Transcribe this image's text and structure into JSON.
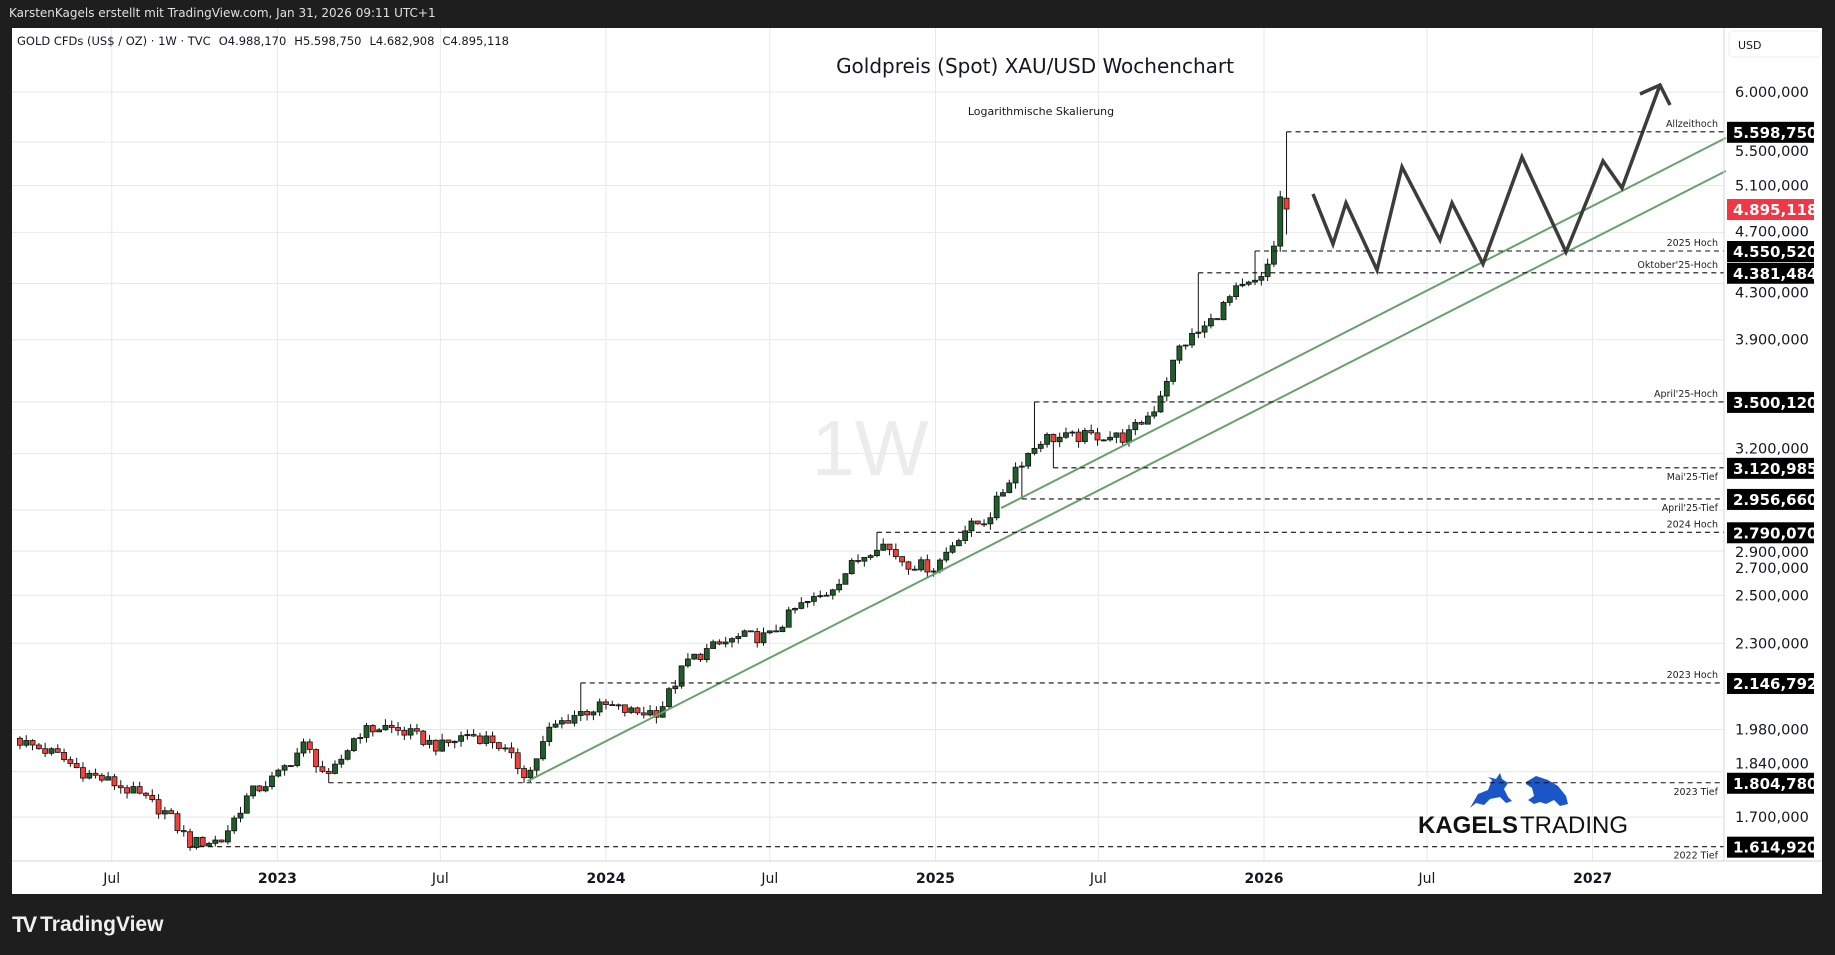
{
  "credits": "KarstenKagels erstellt mit TradingView.com, Jan 31, 2026 09:11 UTC+1",
  "branding": {
    "tradingview": "TradingView",
    "kagels_bold": "KAGELS",
    "kagels_light": "TRADING"
  },
  "legend": {
    "symbol": "GOLD CFDs (US$ / OZ) · 1W · TVC",
    "open": "O4.988,170",
    "high": "H5.598,750",
    "low": "L4.682,908",
    "close": "C4.895,118"
  },
  "chart_data": {
    "type": "candlestick",
    "title": "Goldpreis (Spot) XAU/USD Wochenchart",
    "subtitle": "Logarithmische Skalierung",
    "interval_watermark": "1W",
    "currency": "USD",
    "y_scale": "log",
    "ylim": [
      1560,
      6400
    ],
    "colors": {
      "up": "#1f5e2b",
      "down": "#f2403a",
      "trend": "#6a9f6e",
      "projection": "#3c3c3c",
      "current": "#f23645",
      "brand": "#1a56c8"
    },
    "x_ticks": [
      {
        "date": "2022-07-01",
        "label": "Jul",
        "bold": false
      },
      {
        "date": "2023-01-01",
        "label": "2023",
        "bold": true
      },
      {
        "date": "2023-07-01",
        "label": "Jul",
        "bold": false
      },
      {
        "date": "2024-01-01",
        "label": "2024",
        "bold": true
      },
      {
        "date": "2024-07-01",
        "label": "Jul",
        "bold": false
      },
      {
        "date": "2025-01-01",
        "label": "2025",
        "bold": true
      },
      {
        "date": "2025-07-01",
        "label": "Jul",
        "bold": false
      },
      {
        "date": "2026-01-01",
        "label": "2026",
        "bold": true
      },
      {
        "date": "2026-07-01",
        "label": "Jul",
        "bold": false
      },
      {
        "date": "2027-01-01",
        "label": "2027",
        "bold": true
      }
    ],
    "y_ticks": [
      {
        "value": 6000,
        "label": "6.000,000"
      },
      {
        "value": 5500,
        "label": "5.500,000"
      },
      {
        "value": 5100,
        "label": "5.100,000"
      },
      {
        "value": 4700,
        "label": "4.700,000"
      },
      {
        "value": 4300,
        "label": "4.300,000"
      },
      {
        "value": 3900,
        "label": "3.900,000"
      },
      {
        "value": 3200,
        "label": "3.200,000"
      },
      {
        "value": 2900,
        "label": "2.900,000"
      },
      {
        "value": 2700,
        "label": "2.700,000"
      },
      {
        "value": 2500,
        "label": "2.500,000"
      },
      {
        "value": 2300,
        "label": "2.300,000"
      },
      {
        "value": 1980,
        "label": "1.980,000"
      },
      {
        "value": 1840,
        "label": "1.840,000"
      },
      {
        "value": 1700,
        "label": "1.700,000"
      }
    ],
    "y_grid_only": [
      3500
    ],
    "close_anchors": [
      [
        "2022-03-21",
        1940
      ],
      [
        "2022-04-30",
        1896
      ],
      [
        "2022-05-31",
        1837
      ],
      [
        "2022-06-30",
        1807
      ],
      [
        "2022-07-31",
        1766
      ],
      [
        "2022-08-31",
        1711
      ],
      [
        "2022-09-26",
        1625
      ],
      [
        "2022-10-31",
        1633
      ],
      [
        "2022-11-30",
        1768
      ],
      [
        "2022-12-31",
        1824
      ],
      [
        "2023-01-31",
        1928
      ],
      [
        "2023-02-27",
        1815
      ],
      [
        "2023-03-31",
        1969
      ],
      [
        "2023-04-30",
        1990
      ],
      [
        "2023-05-31",
        1962
      ],
      [
        "2023-06-30",
        1919
      ],
      [
        "2023-07-31",
        1965
      ],
      [
        "2023-08-31",
        1940
      ],
      [
        "2023-10-06",
        1825
      ],
      [
        "2023-10-31",
        1983
      ],
      [
        "2023-11-30",
        2036
      ],
      [
        "2023-12-31",
        2063
      ],
      [
        "2024-01-31",
        2039
      ],
      [
        "2024-02-29",
        2044
      ],
      [
        "2024-03-31",
        2229
      ],
      [
        "2024-04-30",
        2286
      ],
      [
        "2024-05-31",
        2327
      ],
      [
        "2024-06-30",
        2326
      ],
      [
        "2024-07-31",
        2447
      ],
      [
        "2024-08-31",
        2503
      ],
      [
        "2024-09-30",
        2634
      ],
      [
        "2024-10-31",
        2744
      ],
      [
        "2024-11-30",
        2643
      ],
      [
        "2024-12-31",
        2624
      ],
      [
        "2025-01-31",
        2798
      ],
      [
        "2025-02-28",
        2857
      ],
      [
        "2025-03-31",
        3123
      ],
      [
        "2025-04-30",
        3288
      ],
      [
        "2025-05-31",
        3289
      ],
      [
        "2025-06-30",
        3303
      ],
      [
        "2025-07-31",
        3290
      ],
      [
        "2025-08-31",
        3448
      ],
      [
        "2025-09-30",
        3858
      ],
      [
        "2025-10-31",
        4003
      ],
      [
        "2025-11-30",
        4240
      ],
      [
        "2025-12-31",
        4330
      ],
      [
        "2026-01-12",
        4600
      ],
      [
        "2026-01-19",
        4985
      ]
    ],
    "last_candle": {
      "date": "2026-01-26",
      "open": 4988.17,
      "high": 5598.75,
      "low": 4682.908,
      "close": 4895.118
    },
    "current_price": {
      "value": 4895.118,
      "label": "4.895,118"
    },
    "levels": [
      {
        "name": "Allzeithoch",
        "value": 5598.75,
        "label": "5.598,750",
        "start": "2026-01-26",
        "side": "above",
        "kind": "high"
      },
      {
        "name": "2025 Hoch",
        "value": 4550.52,
        "label": "4.550,520",
        "start": "2025-12-22",
        "side": "above",
        "kind": "high"
      },
      {
        "name": "Oktober'25-Hoch",
        "value": 4381.484,
        "label": "4.381,484",
        "start": "2025-10-20",
        "side": "above",
        "kind": "high"
      },
      {
        "name": "April'25-Hoch",
        "value": 3500.12,
        "label": "3.500,120",
        "start": "2025-04-21",
        "side": "above",
        "kind": "high"
      },
      {
        "name": "Mai'25-Tief",
        "value": 3120.985,
        "label": "3.120,985",
        "start": "2025-05-12",
        "side": "below",
        "kind": "low"
      },
      {
        "name": "April'25-Tief",
        "value": 2956.66,
        "label": "2.956,660",
        "start": "2025-04-07",
        "side": "below",
        "kind": "low"
      },
      {
        "name": "2024 Hoch",
        "value": 2790.07,
        "label": "2.790,070",
        "start": "2024-10-28",
        "side": "above",
        "kind": "high"
      },
      {
        "name": "2023 Hoch",
        "value": 2146.792,
        "label": "2.146,792",
        "start": "2023-12-04",
        "side": "above",
        "kind": "high"
      },
      {
        "name": "2023 Tief",
        "value": 1804.78,
        "label": "1.804,780",
        "start": "2023-02-27",
        "side": "below",
        "kind": "low"
      },
      {
        "name": "2022 Tief",
        "value": 1614.92,
        "label": "1.614,920",
        "start": "2022-09-26",
        "side": "below",
        "kind": "low"
      }
    ],
    "trendlines": [
      {
        "name": "lower",
        "from": [
          "2023-10-06",
          1810
        ],
        "to": [
          "2027-05-29",
          5230
        ]
      },
      {
        "name": "upper",
        "from": [
          "2025-03-15",
          2910
        ],
        "to": [
          "2027-05-29",
          5540
        ]
      }
    ]
  }
}
